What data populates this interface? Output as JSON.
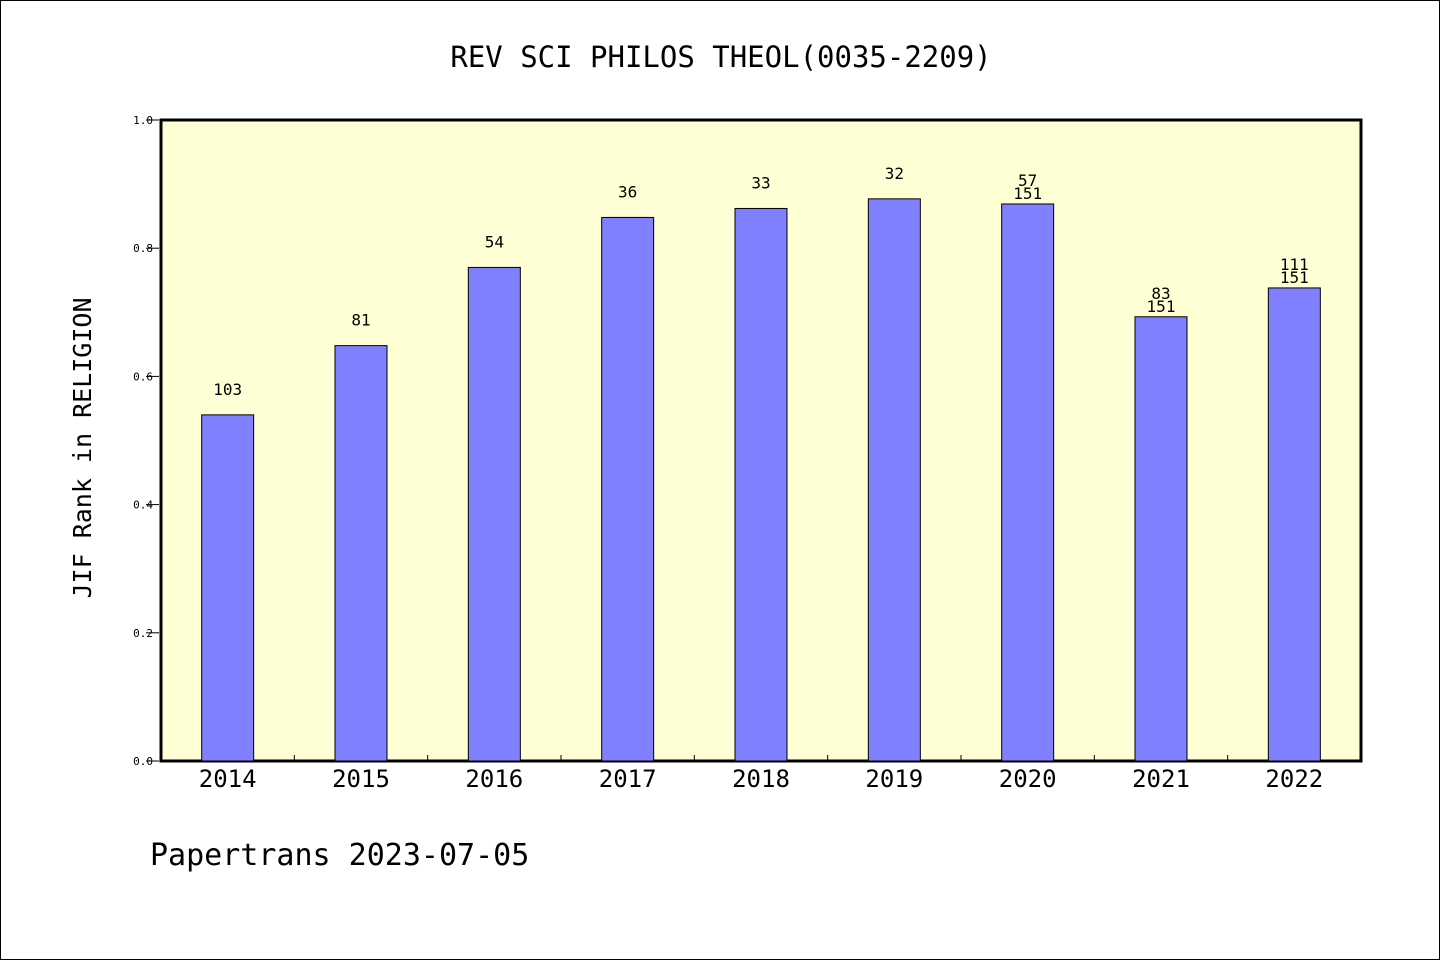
{
  "chart_data": {
    "type": "bar",
    "title": "REV SCI PHILOS THEOL(0035-2209)",
    "ylabel": "JIF Rank in RELIGION",
    "xlabel": "",
    "ylim": [
      0,
      1.0
    ],
    "yticks": [
      "0.0",
      "0.2",
      "0.4",
      "0.6",
      "0.8",
      "1.0"
    ],
    "categories": [
      "2014",
      "2015",
      "2016",
      "2017",
      "2018",
      "2019",
      "2020",
      "2021",
      "2022"
    ],
    "values": [
      0.54,
      0.648,
      0.77,
      0.848,
      0.862,
      0.877,
      0.869,
      0.693,
      0.738
    ],
    "labels": [
      [
        "103"
      ],
      [
        "81"
      ],
      [
        "54"
      ],
      [
        "36"
      ],
      [
        "33"
      ],
      [
        "32"
      ],
      [
        "57",
        "151"
      ],
      [
        "83",
        "151"
      ],
      [
        "111",
        "151"
      ]
    ],
    "colors": {
      "bar": "#8080ff",
      "plot_bg": "#ffffd5"
    },
    "footer": "Papertrans 2023-07-05"
  }
}
